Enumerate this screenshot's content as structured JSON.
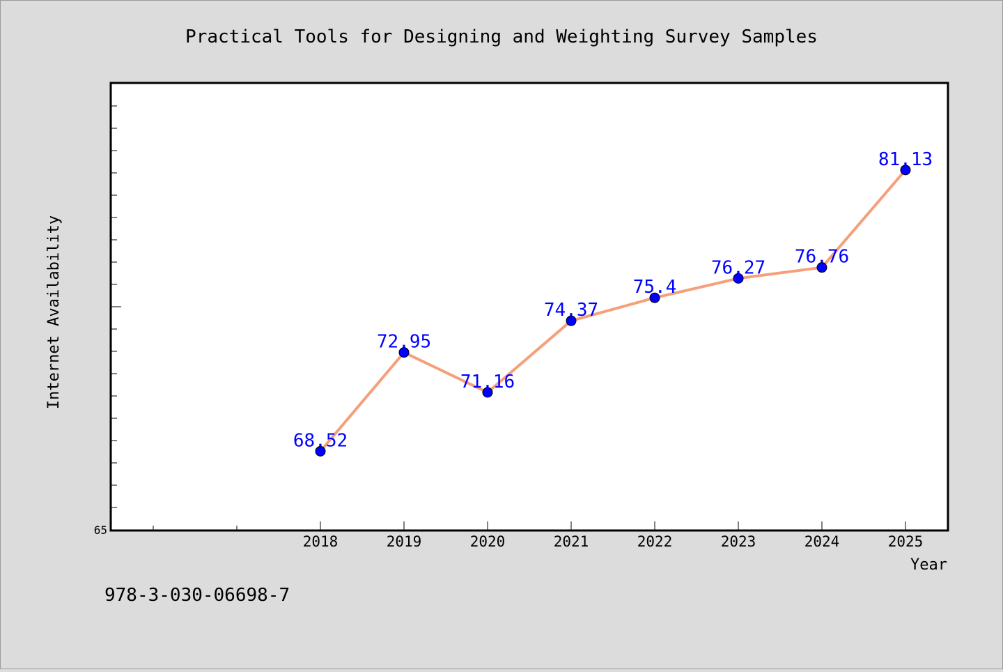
{
  "chart_data": {
    "type": "line",
    "title": "Practical Tools for Designing and Weighting Survey Samples",
    "xlabel": "Year",
    "ylabel": "Internet Availability",
    "x": [
      "2018",
      "2019",
      "2020",
      "2021",
      "2022",
      "2023",
      "2024",
      "2025"
    ],
    "series": [
      {
        "values": [
          68.52,
          72.95,
          71.16,
          74.37,
          75.4,
          76.27,
          76.76,
          81.13
        ],
        "labels": [
          "68.52",
          "72.95",
          "71.16",
          "74.37",
          "75.4",
          "76.27",
          "76.76",
          "81.13"
        ]
      }
    ],
    "ylim": [
      65,
      85
    ],
    "xlim": [
      2015.5,
      2025.5
    ],
    "y_tick_labels": [
      "65"
    ],
    "y_minor_step": 1,
    "x_minor_step": 1,
    "grid": false,
    "line_color": "#f4a07a",
    "marker_color": "#0000ff",
    "label_color": "#0000ff"
  },
  "footer": {
    "isbn": "978-3-030-06698-7"
  }
}
